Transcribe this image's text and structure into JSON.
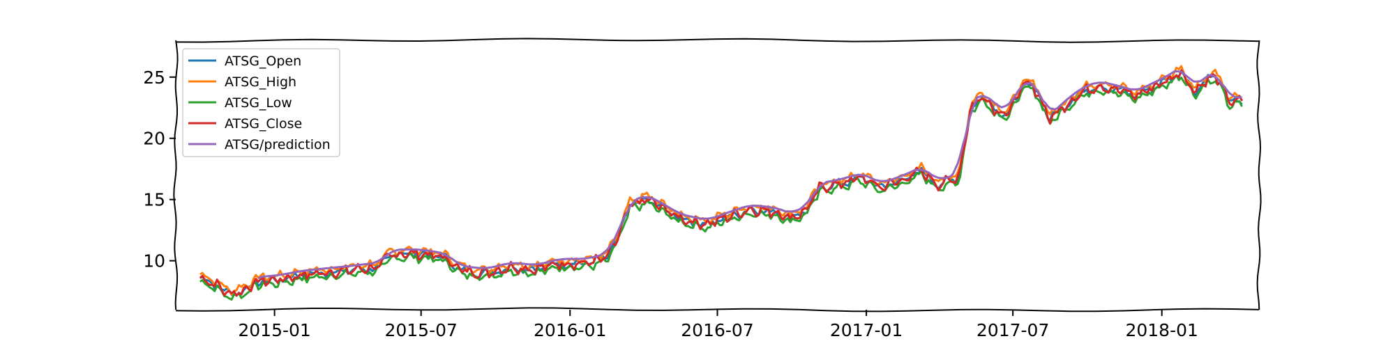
{
  "chart_data": {
    "type": "line",
    "title": "",
    "xlabel": "",
    "ylabel": "",
    "xlim": [
      "2014-09-01",
      "2018-05-01"
    ],
    "ylim": [
      6,
      28
    ],
    "grid": false,
    "legend_position": "top-left",
    "x_ticks": [
      "2015-01",
      "2015-07",
      "2016-01",
      "2016-07",
      "2017-01",
      "2017-07",
      "2018-01"
    ],
    "y_ticks": [
      10,
      15,
      20,
      25
    ],
    "key_points": [
      [
        "2014-10-01",
        8.6
      ],
      [
        "2014-10-20",
        8.1
      ],
      [
        "2014-11-05",
        7.3
      ],
      [
        "2014-11-25",
        7.6
      ],
      [
        "2014-12-10",
        8.3
      ],
      [
        "2015-01-10",
        8.5
      ],
      [
        "2015-02-01",
        8.8
      ],
      [
        "2015-03-01",
        9.0
      ],
      [
        "2015-04-01",
        9.2
      ],
      [
        "2015-05-10",
        9.5
      ],
      [
        "2015-05-25",
        10.5
      ],
      [
        "2015-06-15",
        10.6
      ],
      [
        "2015-07-10",
        10.5
      ],
      [
        "2015-08-01",
        10.2
      ],
      [
        "2015-08-20",
        9.2
      ],
      [
        "2015-09-20",
        9.0
      ],
      [
        "2015-10-20",
        9.5
      ],
      [
        "2015-11-20",
        9.3
      ],
      [
        "2015-12-20",
        9.8
      ],
      [
        "2016-01-20",
        9.8
      ],
      [
        "2016-02-15",
        10.2
      ],
      [
        "2016-03-01",
        12.0
      ],
      [
        "2016-03-15",
        14.5
      ],
      [
        "2016-04-05",
        15.0
      ],
      [
        "2016-04-25",
        14.3
      ],
      [
        "2016-05-15",
        13.5
      ],
      [
        "2016-06-01",
        13.2
      ],
      [
        "2016-06-20",
        13.0
      ],
      [
        "2016-07-10",
        13.5
      ],
      [
        "2016-08-10",
        14.2
      ],
      [
        "2016-09-10",
        14.0
      ],
      [
        "2016-10-01",
        13.5
      ],
      [
        "2016-10-20",
        14.2
      ],
      [
        "2016-11-05",
        16.0
      ],
      [
        "2016-12-01",
        16.3
      ],
      [
        "2016-12-25",
        16.8
      ],
      [
        "2017-01-20",
        16.0
      ],
      [
        "2017-02-15",
        16.6
      ],
      [
        "2017-03-10",
        17.3
      ],
      [
        "2017-04-01",
        16.2
      ],
      [
        "2017-04-25",
        16.8
      ],
      [
        "2017-05-10",
        22.5
      ],
      [
        "2017-05-25",
        23.5
      ],
      [
        "2017-06-10",
        22.3
      ],
      [
        "2017-06-25",
        22.0
      ],
      [
        "2017-07-15",
        24.5
      ],
      [
        "2017-08-01",
        23.8
      ],
      [
        "2017-08-15",
        21.5
      ],
      [
        "2017-09-05",
        22.8
      ],
      [
        "2017-09-25",
        23.8
      ],
      [
        "2017-10-15",
        24.3
      ],
      [
        "2017-11-05",
        24.0
      ],
      [
        "2017-12-01",
        23.5
      ],
      [
        "2017-12-25",
        24.3
      ],
      [
        "2018-01-10",
        24.8
      ],
      [
        "2018-01-25",
        25.5
      ],
      [
        "2018-02-10",
        23.8
      ],
      [
        "2018-02-25",
        24.8
      ],
      [
        "2018-03-10",
        25.0
      ],
      [
        "2018-03-25",
        23.0
      ],
      [
        "2018-04-12",
        23.0
      ]
    ],
    "series": [
      {
        "name": "ATSG_Open",
        "color": "#1f77b4",
        "start": "2014-10-01",
        "offset": 0.0,
        "amp": 0.25
      },
      {
        "name": "ATSG_High",
        "color": "#ff7f0e",
        "start": "2014-10-01",
        "offset": 0.3,
        "amp": 0.25
      },
      {
        "name": "ATSG_Low",
        "color": "#2ca02c",
        "start": "2014-10-01",
        "offset": -0.3,
        "amp": 0.25
      },
      {
        "name": "ATSG_Close",
        "color": "#d62728",
        "start": "2014-10-01",
        "offset": 0.0,
        "amp": 0.3
      },
      {
        "name": "ATSG/prediction",
        "color": "#9467bd",
        "start": "2014-12-10",
        "offset": 0.35,
        "amp": 0.0
      }
    ]
  }
}
